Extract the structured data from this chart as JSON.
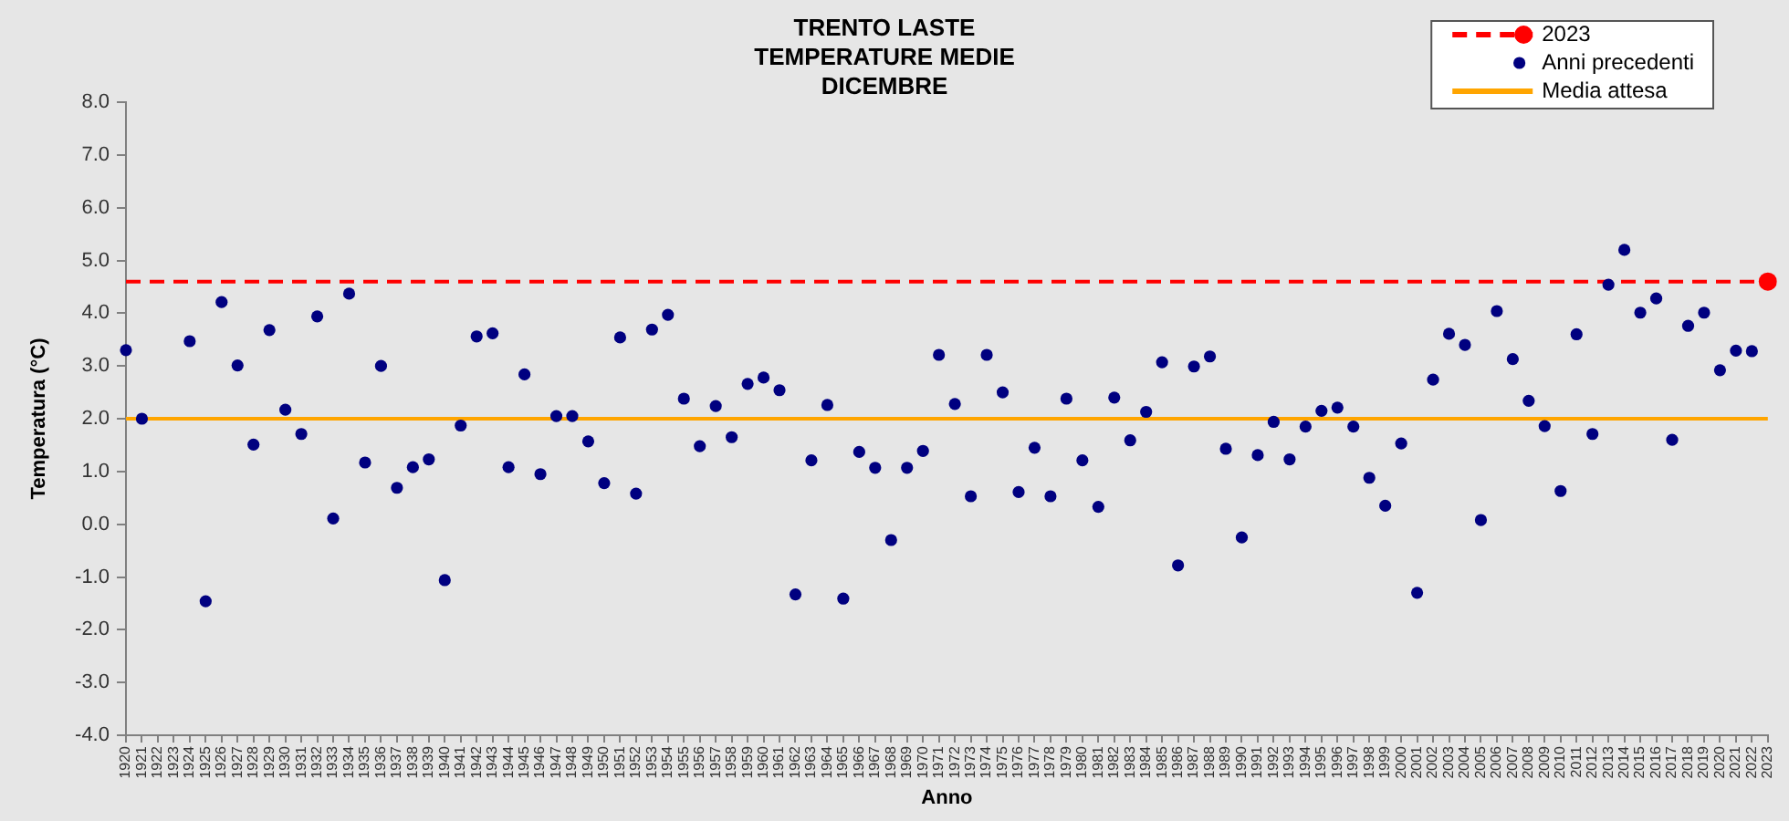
{
  "chart_data": {
    "type": "scatter",
    "title": "TRENTO LASTE\nTEMPERATURE MEDIE\nDICEMBRE",
    "xlabel": "Anno",
    "ylabel": "Temperatura (°C)",
    "categories": [
      "1920",
      "1921",
      "1922",
      "1923",
      "1924",
      "1925",
      "1926",
      "1927",
      "1928",
      "1929",
      "1930",
      "1931",
      "1932",
      "1933",
      "1934",
      "1935",
      "1936",
      "1937",
      "1938",
      "1939",
      "1940",
      "1941",
      "1942",
      "1943",
      "1944",
      "1945",
      "1946",
      "1947",
      "1948",
      "1949",
      "1950",
      "1951",
      "1952",
      "1953",
      "1954",
      "1955",
      "1956",
      "1957",
      "1958",
      "1959",
      "1960",
      "1961",
      "1962",
      "1963",
      "1964",
      "1965",
      "1966",
      "1967",
      "1968",
      "1969",
      "1970",
      "1971",
      "1972",
      "1973",
      "1974",
      "1975",
      "1976",
      "1977",
      "1978",
      "1979",
      "1980",
      "1981",
      "1982",
      "1983",
      "1984",
      "1985",
      "1986",
      "1987",
      "1988",
      "1989",
      "1990",
      "1991",
      "1992",
      "1993",
      "1994",
      "1995",
      "1996",
      "1997",
      "1998",
      "1999",
      "2000",
      "2001",
      "2002",
      "2003",
      "2004",
      "2005",
      "2006",
      "2007",
      "2008",
      "2009",
      "2010",
      "2011",
      "2012",
      "2013",
      "2014",
      "2015",
      "2016",
      "2017",
      "2018",
      "2019",
      "2020",
      "2021",
      "2022",
      "2023"
    ],
    "series": [
      {
        "name": "2023",
        "type": "line",
        "color": "#ff0000",
        "marker": "circle",
        "line_style": "dashed",
        "values": [
          null,
          null,
          null,
          null,
          null,
          null,
          null,
          null,
          null,
          null,
          null,
          null,
          null,
          null,
          null,
          null,
          null,
          null,
          null,
          null,
          null,
          null,
          null,
          null,
          null,
          null,
          null,
          null,
          null,
          null,
          null,
          null,
          null,
          null,
          null,
          null,
          null,
          null,
          null,
          null,
          null,
          null,
          null,
          null,
          null,
          null,
          null,
          null,
          null,
          null,
          null,
          null,
          null,
          null,
          null,
          null,
          null,
          null,
          null,
          null,
          null,
          null,
          null,
          null,
          null,
          null,
          null,
          null,
          null,
          null,
          null,
          null,
          null,
          null,
          null,
          null,
          null,
          null,
          null,
          null,
          null,
          null,
          null,
          null,
          null,
          null,
          null,
          null,
          null,
          null,
          null,
          null,
          null,
          null,
          null,
          null,
          null,
          null,
          null,
          null,
          null,
          null,
          null,
          4.6
        ]
      },
      {
        "name": "Anni precedenti",
        "type": "scatter",
        "color": "#000080",
        "marker": "circle",
        "values": [
          3.3,
          2.0,
          null,
          null,
          3.47,
          -1.46,
          4.21,
          3.01,
          1.51,
          3.68,
          2.17,
          1.71,
          3.94,
          0.11,
          4.37,
          1.17,
          3.0,
          0.69,
          1.08,
          1.23,
          -1.06,
          1.87,
          3.56,
          3.62,
          1.08,
          2.84,
          0.95,
          2.05,
          2.05,
          1.57,
          0.78,
          3.54,
          0.58,
          3.69,
          3.97,
          2.38,
          1.48,
          2.24,
          1.65,
          2.66,
          2.78,
          2.54,
          -1.33,
          1.21,
          2.26,
          -1.41,
          1.37,
          1.07,
          -0.3,
          1.07,
          1.39,
          3.21,
          2.28,
          0.53,
          3.21,
          2.5,
          0.61,
          1.45,
          0.53,
          2.38,
          1.21,
          0.33,
          2.4,
          1.59,
          2.13,
          3.07,
          -0.78,
          2.99,
          3.18,
          1.43,
          -0.25,
          1.31,
          1.94,
          1.23,
          1.85,
          2.15,
          2.21,
          1.85,
          0.88,
          0.35,
          1.53,
          -1.3,
          2.74,
          3.61,
          3.4,
          0.08,
          4.04,
          3.13,
          2.34,
          1.86,
          0.63,
          3.6,
          1.71,
          4.54,
          5.2,
          4.01,
          4.28,
          1.6,
          3.76,
          4.01,
          2.92,
          3.29,
          3.28,
          null
        ]
      },
      {
        "name": "Media attesa",
        "type": "line",
        "color": "#ffa500",
        "marker": "none",
        "line_style": "solid",
        "values": [
          2.0,
          2.0,
          2.0,
          2.0,
          2.0,
          2.0,
          2.0,
          2.0,
          2.0,
          2.0,
          2.0,
          2.0,
          2.0,
          2.0,
          2.0,
          2.0,
          2.0,
          2.0,
          2.0,
          2.0,
          2.0,
          2.0,
          2.0,
          2.0,
          2.0,
          2.0,
          2.0,
          2.0,
          2.0,
          2.0,
          2.0,
          2.0,
          2.0,
          2.0,
          2.0,
          2.0,
          2.0,
          2.0,
          2.0,
          2.0,
          2.0,
          2.0,
          2.0,
          2.0,
          2.0,
          2.0,
          2.0,
          2.0,
          2.0,
          2.0,
          2.0,
          2.0,
          2.0,
          2.0,
          2.0,
          2.0,
          2.0,
          2.0,
          2.0,
          2.0,
          2.0,
          2.0,
          2.0,
          2.0,
          2.0,
          2.0,
          2.0,
          2.0,
          2.0,
          2.0,
          2.0,
          2.0,
          2.0,
          2.0,
          2.0,
          2.0,
          2.0,
          2.0,
          2.0,
          2.0,
          2.0,
          2.0,
          2.0,
          2.0,
          2.0,
          2.0,
          2.0,
          2.0,
          2.0,
          2.0,
          2.0,
          2.0,
          2.0,
          2.0,
          2.0,
          2.0,
          2.0,
          2.0,
          2.0,
          2.0,
          2.0,
          2.0,
          2.0,
          2.0
        ]
      }
    ],
    "ylim": [
      -4,
      8
    ],
    "yticks": [
      {
        "value": -4,
        "label": "-4.0"
      },
      {
        "value": -3,
        "label": "-3.0"
      },
      {
        "value": -2,
        "label": "-2.0"
      },
      {
        "value": -1,
        "label": "-1.0"
      },
      {
        "value": 0,
        "label": "0.0"
      },
      {
        "value": 1,
        "label": "1.0"
      },
      {
        "value": 2,
        "label": "2.0"
      },
      {
        "value": 3,
        "label": "3.0"
      },
      {
        "value": 4,
        "label": "4.0"
      },
      {
        "value": 5,
        "label": "5.0"
      },
      {
        "value": 6,
        "label": "6.0"
      },
      {
        "value": 7,
        "label": "7.0"
      },
      {
        "value": 8,
        "label": "8.0"
      }
    ],
    "ref_lines": [
      {
        "axis": "y",
        "value": 4.6,
        "color": "#ff0000",
        "line_style": "dashed"
      }
    ],
    "legend": "top right"
  }
}
